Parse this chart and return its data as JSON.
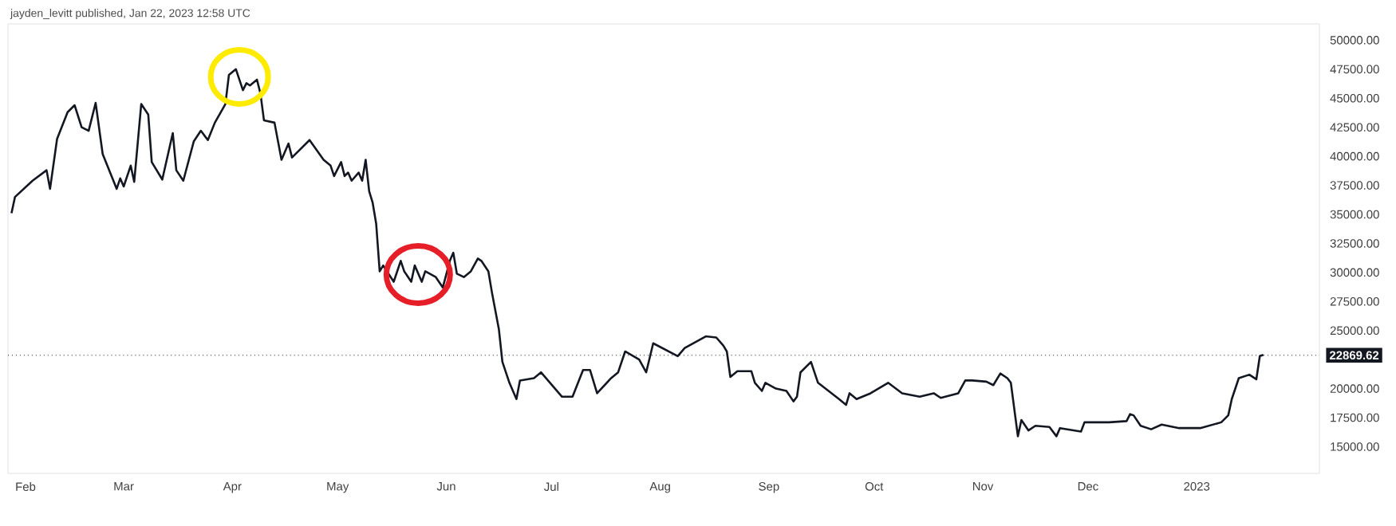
{
  "chart_data": {
    "type": "line",
    "annotations": [
      "jayden_levitt published, Jan 22, 2023 12:58 UTC"
    ],
    "x": [
      "2022-01-28",
      "2022-01-29",
      "2022-02-03",
      "2022-02-07",
      "2022-02-08",
      "2022-02-10",
      "2022-02-13",
      "2022-02-15",
      "2022-02-17",
      "2022-02-19",
      "2022-02-21",
      "2022-02-23",
      "2022-02-27",
      "2022-02-28",
      "2022-03-01",
      "2022-03-03",
      "2022-03-04",
      "2022-03-06",
      "2022-03-08",
      "2022-03-09",
      "2022-03-12",
      "2022-03-15",
      "2022-03-16",
      "2022-03-18",
      "2022-03-21",
      "2022-03-23",
      "2022-03-25",
      "2022-03-27",
      "2022-03-30",
      "2022-03-31",
      "2022-04-02",
      "2022-04-04",
      "2022-04-05",
      "2022-04-06",
      "2022-04-08",
      "2022-04-09",
      "2022-04-10",
      "2022-04-13",
      "2022-04-15",
      "2022-04-17",
      "2022-04-18",
      "2022-04-20",
      "2022-04-23",
      "2022-04-27",
      "2022-04-29",
      "2022-04-30",
      "2022-05-02",
      "2022-05-03",
      "2022-05-04",
      "2022-05-05",
      "2022-05-07",
      "2022-05-08",
      "2022-05-09",
      "2022-05-10",
      "2022-05-11",
      "2022-05-12",
      "2022-05-13",
      "2022-05-14",
      "2022-05-17",
      "2022-05-19",
      "2022-05-20",
      "2022-05-22",
      "2022-05-23",
      "2022-05-25",
      "2022-05-26",
      "2022-05-29",
      "2022-05-31",
      "2022-06-02",
      "2022-06-03",
      "2022-06-04",
      "2022-06-06",
      "2022-06-08",
      "2022-06-10",
      "2022-06-11",
      "2022-06-13",
      "2022-06-14",
      "2022-06-16",
      "2022-06-17",
      "2022-06-19",
      "2022-06-21",
      "2022-06-22",
      "2022-06-26",
      "2022-06-28",
      "2022-07-02",
      "2022-07-04",
      "2022-07-07",
      "2022-07-10",
      "2022-07-12",
      "2022-07-14",
      "2022-07-18",
      "2022-07-20",
      "2022-07-22",
      "2022-07-26",
      "2022-07-28",
      "2022-07-30",
      "2022-08-06",
      "2022-08-08",
      "2022-08-14",
      "2022-08-17",
      "2022-08-19",
      "2022-08-20",
      "2022-08-21",
      "2022-08-23",
      "2022-08-27",
      "2022-08-28",
      "2022-08-30",
      "2022-08-31",
      "2022-09-03",
      "2022-09-06",
      "2022-09-08",
      "2022-09-09",
      "2022-09-10",
      "2022-09-13",
      "2022-09-15",
      "2022-09-18",
      "2022-09-21",
      "2022-09-23",
      "2022-09-24",
      "2022-09-26",
      "2022-09-30",
      "2022-10-05",
      "2022-10-09",
      "2022-10-14",
      "2022-10-18",
      "2022-10-20",
      "2022-10-25",
      "2022-10-27",
      "2022-10-29",
      "2022-11-02",
      "2022-11-04",
      "2022-11-06",
      "2022-11-08",
      "2022-11-09",
      "2022-11-10",
      "2022-11-11",
      "2022-11-12",
      "2022-11-14",
      "2022-11-16",
      "2022-11-20",
      "2022-11-22",
      "2022-11-23",
      "2022-11-29",
      "2022-11-30",
      "2022-12-07",
      "2022-12-12",
      "2022-12-13",
      "2022-12-14",
      "2022-12-16",
      "2022-12-19",
      "2022-12-22",
      "2022-12-27",
      "2023-01-02",
      "2023-01-08",
      "2023-01-10",
      "2023-01-11",
      "2023-01-13",
      "2023-01-16",
      "2023-01-18",
      "2023-01-19",
      "2023-01-20"
    ],
    "series": [
      {
        "color": "#131722",
        "values": [
          35100,
          36500,
          37900,
          38800,
          37200,
          41500,
          43800,
          44400,
          42500,
          42200,
          44600,
          40200,
          37200,
          38100,
          37400,
          39200,
          37800,
          44500,
          43600,
          39500,
          38000,
          42000,
          38800,
          37900,
          41300,
          42200,
          41400,
          42900,
          44500,
          47000,
          47500,
          45700,
          46300,
          46100,
          46600,
          45400,
          43100,
          42900,
          39700,
          41100,
          39900,
          40500,
          41400,
          39700,
          39200,
          38300,
          39500,
          38300,
          38600,
          37900,
          38600,
          37900,
          39700,
          37000,
          36000,
          34200,
          30100,
          30600,
          29200,
          31000,
          30100,
          29200,
          30600,
          29200,
          30100,
          29600,
          28700,
          31000,
          31700,
          29900,
          29600,
          30100,
          31200,
          31000,
          30100,
          28300,
          25100,
          22300,
          20500,
          19100,
          20700,
          20900,
          21400,
          20000,
          19300,
          19300,
          21600,
          21600,
          19600,
          20900,
          21400,
          23200,
          22500,
          21400,
          23900,
          22800,
          23500,
          24500,
          24400,
          23700,
          23200,
          21000,
          21500,
          21500,
          20500,
          19800,
          20500,
          20000,
          19800,
          18900,
          19300,
          21400,
          22300,
          20500,
          19800,
          19100,
          18600,
          19600,
          19100,
          19600,
          20500,
          19600,
          19300,
          19600,
          19200,
          19600,
          20700,
          20700,
          20600,
          20300,
          21300,
          20900,
          20500,
          18200,
          15900,
          17300,
          16400,
          16800,
          16700,
          15900,
          16600,
          16300,
          17100,
          17100,
          17200,
          17800,
          17700,
          16800,
          16500,
          16900,
          16600,
          16600,
          17100,
          17700,
          19100,
          20900,
          21200,
          20800,
          22800,
          22900
        ]
      }
    ],
    "xlim": [
      "2022-01-27",
      "2023-02-05"
    ],
    "xticks": [
      {
        "value": "2022-02-01",
        "label": "Feb"
      },
      {
        "value": "2022-03-01",
        "label": "Mar"
      },
      {
        "value": "2022-04-01",
        "label": "Apr"
      },
      {
        "value": "2022-05-01",
        "label": "May"
      },
      {
        "value": "2022-06-01",
        "label": "Jun"
      },
      {
        "value": "2022-07-01",
        "label": "Jul"
      },
      {
        "value": "2022-08-01",
        "label": "Aug"
      },
      {
        "value": "2022-09-01",
        "label": "Sep"
      },
      {
        "value": "2022-10-01",
        "label": "Oct"
      },
      {
        "value": "2022-11-01",
        "label": "Nov"
      },
      {
        "value": "2022-12-01",
        "label": "Dec"
      },
      {
        "value": "2023-01-01",
        "label": "2023"
      }
    ],
    "ylim": [
      12700,
      51400
    ],
    "yticks": [
      {
        "value": 15000,
        "label": "15000.00"
      },
      {
        "value": 17500,
        "label": "17500.00"
      },
      {
        "value": 20000,
        "label": "20000.00"
      },
      {
        "value": 25000,
        "label": "25000.00"
      },
      {
        "value": 27500,
        "label": "27500.00"
      },
      {
        "value": 30000,
        "label": "30000.00"
      },
      {
        "value": 32500,
        "label": "32500.00"
      },
      {
        "value": 35000,
        "label": "35000.00"
      },
      {
        "value": 37500,
        "label": "37500.00"
      },
      {
        "value": 40000,
        "label": "40000.00"
      },
      {
        "value": 42500,
        "label": "42500.00"
      },
      {
        "value": 45000,
        "label": "45000.00"
      },
      {
        "value": 47500,
        "label": "47500.00"
      },
      {
        "value": 50000,
        "label": "50000.00"
      }
    ],
    "ref_lines": [
      {
        "axis": "y",
        "value": 22869.62,
        "label": "22869.62",
        "line_style": "dotted",
        "color": "#131722"
      }
    ],
    "grid": false,
    "marker": "none",
    "line_style": "solid"
  }
}
